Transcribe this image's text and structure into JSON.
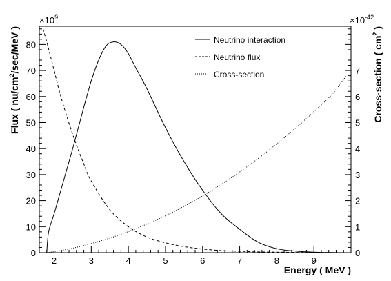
{
  "chart_data": {
    "type": "line",
    "xlabel": "Energy ( MeV )",
    "ylabel_left": {
      "pre": "Flux ( nu/cm",
      "sup": "2",
      "post": "/sec/MeV )"
    },
    "ylabel_right": {
      "pre": "Cross-section ( cm",
      "sup": "2",
      "post": " )"
    },
    "left_multiplier": {
      "base": "×10",
      "exp": "9"
    },
    "right_multiplier": {
      "base": "×10",
      "exp": "-42"
    },
    "xlim": [
      1.6,
      10.0
    ],
    "ylim_left": [
      0,
      87
    ],
    "ylim_right": [
      0,
      8.7
    ],
    "x_ticks": [
      "2",
      "3",
      "4",
      "5",
      "6",
      "7",
      "8",
      "9"
    ],
    "left_ticks": [
      "0",
      "10",
      "20",
      "30",
      "40",
      "50",
      "60",
      "70",
      "80"
    ],
    "right_ticks": [
      "0",
      "1",
      "2",
      "3",
      "4",
      "5",
      "6",
      "7"
    ],
    "legend_position": "top-right",
    "series": [
      {
        "name": "Neutrino interaction",
        "axis": "left",
        "style": "solid",
        "x": [
          1.8,
          1.85,
          2.0,
          2.2,
          2.5,
          2.8,
          3.0,
          3.2,
          3.4,
          3.6,
          3.8,
          4.0,
          4.2,
          4.5,
          5.0,
          5.5,
          6.0,
          6.5,
          7.0,
          7.5,
          8.0,
          8.5,
          9.0,
          9.5,
          9.9
        ],
        "y": [
          0,
          8,
          15,
          25,
          40,
          56,
          66,
          74,
          79.5,
          81,
          80,
          76.5,
          71,
          63,
          48,
          35,
          24,
          15,
          9,
          4,
          1.5,
          0.6,
          0.2,
          0.05,
          0
        ]
      },
      {
        "name": "Neutrino flux",
        "axis": "left",
        "style": "dashed",
        "x": [
          1.7,
          1.8,
          2.0,
          2.2,
          2.5,
          2.8,
          3.0,
          3.5,
          4.0,
          4.5,
          5.0,
          5.5,
          6.0,
          6.5,
          7.0,
          7.5,
          8.0,
          9.0,
          9.9
        ],
        "y": [
          86,
          81,
          70,
          59,
          45.5,
          34,
          27.5,
          16.5,
          10,
          6,
          3.8,
          2.3,
          1.4,
          0.8,
          0.5,
          0.3,
          0.2,
          0.05,
          0
        ]
      },
      {
        "name": "Cross-section",
        "axis": "right",
        "style": "dotted",
        "x": [
          1.8,
          2.0,
          2.5,
          3.0,
          3.5,
          4.0,
          4.5,
          5.0,
          5.5,
          6.0,
          6.5,
          7.0,
          7.5,
          8.0,
          8.5,
          9.0,
          9.5,
          9.9
        ],
        "y": [
          0,
          0.04,
          0.17,
          0.35,
          0.56,
          0.81,
          1.1,
          1.42,
          1.78,
          2.18,
          2.62,
          3.1,
          3.62,
          4.18,
          4.78,
          5.42,
          6.1,
          6.85
        ]
      }
    ]
  }
}
